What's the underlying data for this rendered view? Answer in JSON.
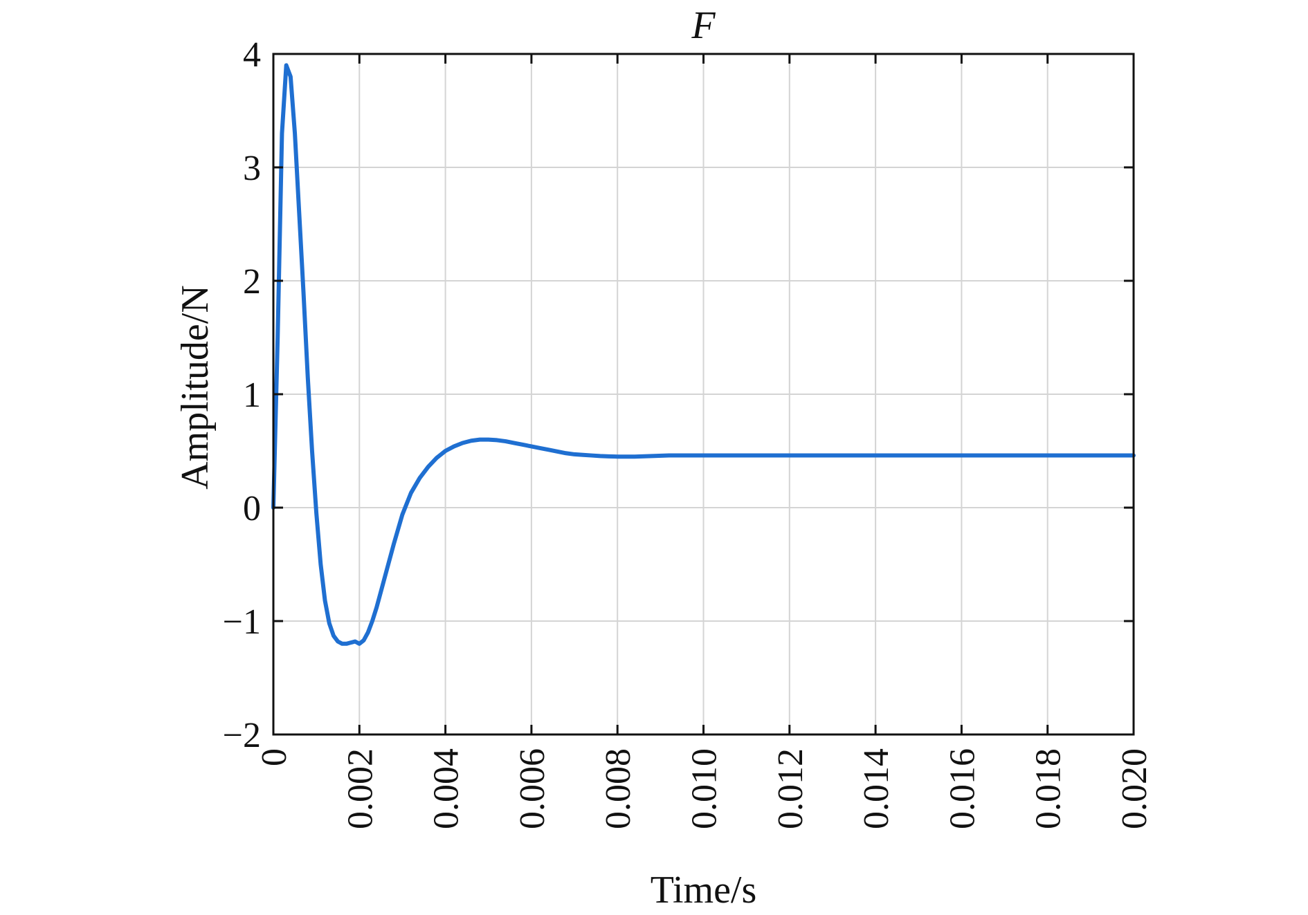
{
  "chart_data": {
    "type": "line",
    "title": "F",
    "xlabel": "Time/s",
    "ylabel": "Amplitude/N",
    "xlim": [
      0,
      0.02
    ],
    "ylim": [
      -2,
      4
    ],
    "grid": true,
    "x_ticks": [
      0,
      0.002,
      0.004,
      0.006,
      0.008,
      0.01,
      0.012,
      0.014,
      0.016,
      0.018,
      0.02
    ],
    "x_tick_labels": [
      "0",
      "0.002",
      "0.004",
      "0.006",
      "0.008",
      "0.010",
      "0.012",
      "0.014",
      "0.016",
      "0.018",
      "0.020"
    ],
    "y_ticks": [
      -2,
      -1,
      0,
      1,
      2,
      3,
      4
    ],
    "y_tick_labels": [
      "−2",
      "−1",
      "0",
      "1",
      "2",
      "3",
      "4"
    ],
    "series": [
      {
        "name": "F",
        "color": "#1f6fd1",
        "x": [
          0,
          0.0001,
          0.0002,
          0.0003,
          0.0004,
          0.0005,
          0.0006,
          0.0007,
          0.0008,
          0.0009,
          0.001,
          0.0011,
          0.0012,
          0.0013,
          0.0014,
          0.0015,
          0.0016,
          0.0017,
          0.0018,
          0.0019,
          0.002,
          0.0021,
          0.0022,
          0.0023,
          0.0024,
          0.0025,
          0.0026,
          0.0028,
          0.003,
          0.0032,
          0.0034,
          0.0036,
          0.0038,
          0.004,
          0.0042,
          0.0044,
          0.0046,
          0.0048,
          0.005,
          0.0052,
          0.0054,
          0.0056,
          0.0058,
          0.006,
          0.0062,
          0.0064,
          0.0066,
          0.0068,
          0.007,
          0.0072,
          0.0074,
          0.0076,
          0.0078,
          0.008,
          0.0084,
          0.0088,
          0.0092,
          0.0096,
          0.01,
          0.011,
          0.012,
          0.013,
          0.014,
          0.015,
          0.016,
          0.017,
          0.018,
          0.019,
          0.02
        ],
        "y": [
          0,
          1.5,
          3.3,
          3.9,
          3.8,
          3.3,
          2.6,
          1.9,
          1.15,
          0.5,
          -0.05,
          -0.5,
          -0.82,
          -1.02,
          -1.13,
          -1.18,
          -1.2,
          -1.2,
          -1.19,
          -1.18,
          -1.2,
          -1.17,
          -1.1,
          -1.0,
          -0.88,
          -0.74,
          -0.6,
          -0.32,
          -0.06,
          0.13,
          0.26,
          0.36,
          0.44,
          0.5,
          0.54,
          0.57,
          0.59,
          0.6,
          0.6,
          0.595,
          0.585,
          0.57,
          0.555,
          0.54,
          0.525,
          0.51,
          0.495,
          0.48,
          0.47,
          0.465,
          0.46,
          0.455,
          0.452,
          0.45,
          0.45,
          0.455,
          0.46,
          0.46,
          0.46,
          0.46,
          0.46,
          0.46,
          0.46,
          0.46,
          0.46,
          0.46,
          0.46,
          0.46,
          0.46
        ]
      }
    ]
  }
}
